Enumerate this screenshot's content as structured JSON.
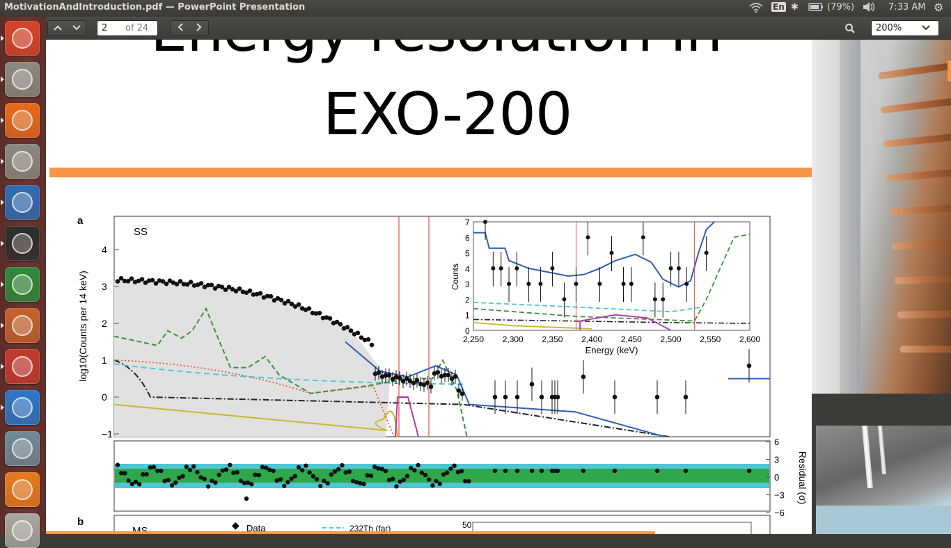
{
  "window": {
    "title": "MotivationAndIntroduction.pdf — PowerPoint Presentation",
    "indicators": {
      "keyboard": "En",
      "battery": "(79%)",
      "time": "7:33 AM"
    }
  },
  "launcher": {
    "apps": [
      {
        "name": "ubuntu-dash-icon",
        "color": "#d8432a"
      },
      {
        "name": "files-icon",
        "color": "#8b8b80"
      },
      {
        "name": "firefox-icon",
        "color": "#e66b1c"
      },
      {
        "name": "text-editor-icon",
        "color": "#8a8a80"
      },
      {
        "name": "writer-icon",
        "color": "#2f6db5"
      },
      {
        "name": "terminal-icon",
        "color": "#2d2d2d"
      },
      {
        "name": "calc-icon",
        "color": "#2e8b3a"
      },
      {
        "name": "impress-icon",
        "color": "#c4632d"
      },
      {
        "name": "document-viewer-icon",
        "color": "#c23a2e"
      },
      {
        "name": "kile-icon",
        "color": "#2b78c8"
      },
      {
        "name": "image-viewer-icon",
        "color": "#6f8b9a"
      },
      {
        "name": "vlc-icon",
        "color": "#e87b1e"
      },
      {
        "name": "trash-icon",
        "color": "#a8a8a0"
      }
    ]
  },
  "toolbar": {
    "page_value": "2",
    "page_total": "of 24",
    "zoom": "200%"
  },
  "slide": {
    "title_line1": "Energy resolution in",
    "title_line2": "EXO-200",
    "accent_color": "#f79646"
  },
  "figure": {
    "panel_a": "a",
    "panel_b": "b",
    "ss_label": "SS",
    "ms_label": "MS",
    "ylabel": "log10(Counts per 14 keV)",
    "yticks": [
      "4",
      "3",
      "2",
      "1",
      "0",
      "−1"
    ],
    "residual_label": "Residual (σ)",
    "residual_ticks": [
      "6",
      "3",
      "0",
      "−3",
      "−6"
    ],
    "inset": {
      "ylabel": "Counts",
      "xlabel": "Energy (keV)",
      "yticks": [
        "7",
        "6",
        "5",
        "4",
        "3",
        "2",
        "1",
        "0"
      ],
      "xticks": [
        "2,250",
        "2,300",
        "2,350",
        "2,400",
        "2,450",
        "2,500",
        "2,550",
        "2,600"
      ]
    },
    "legend_data": "Data",
    "legend_th": "232Th (far)",
    "panel_b_tick": "50"
  }
}
